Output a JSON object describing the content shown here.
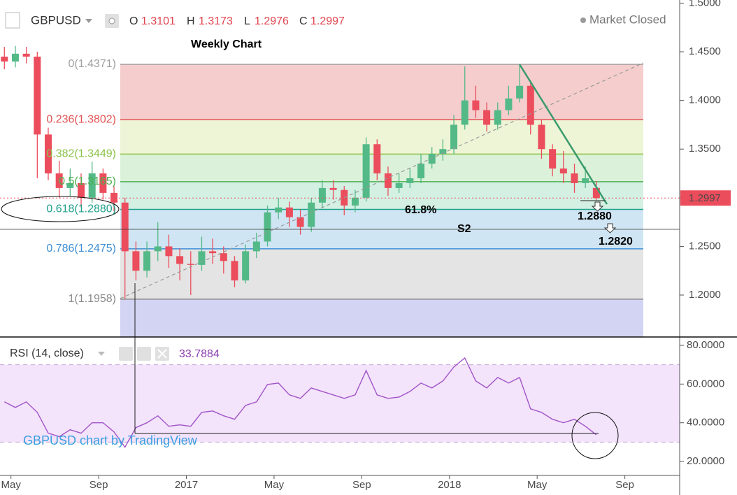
{
  "header": {
    "symbol": "GBPUSD",
    "ohlc_labels": [
      "O",
      "H",
      "L",
      "C"
    ],
    "status": "Market Closed"
  },
  "annotations": {
    "title": "Weekly Chart",
    "fib_pct": "61.8%",
    "s2": "S2",
    "target1": "1.2880",
    "target2": "1.2820",
    "watermark": "GBPUSD chart by TradingView"
  },
  "chart_data": [
    {
      "type": "candlestick",
      "up_color": "#53b987",
      "down_color": "#eb4d5c",
      "last_price_color": "#eb4d5c",
      "x": [
        -0.3,
        0.2,
        0.7,
        1.2,
        1.7,
        2.2,
        2.7,
        3.2,
        3.7,
        4.2,
        4.7,
        5.2,
        5.7,
        6.2,
        6.7,
        7.2,
        7.7,
        8.2,
        8.7,
        9.2,
        9.7,
        10.2,
        10.7,
        11.2,
        11.7,
        12.2,
        12.7,
        13.2,
        13.7,
        14.2,
        14.7,
        15.2,
        15.7,
        16.2,
        16.7,
        17.2,
        17.7,
        18.2,
        18.7,
        19.2,
        19.7,
        20.2,
        20.7,
        21.2,
        21.7,
        22.2,
        22.7,
        23.2,
        23.7,
        24.2,
        24.7,
        25.2,
        25.7,
        26.2,
        26.7
      ],
      "open": [
        1.445,
        1.44,
        1.448,
        1.445,
        1.365,
        1.325,
        1.31,
        1.315,
        1.3,
        1.325,
        1.305,
        1.295,
        1.245,
        1.225,
        1.245,
        1.25,
        1.24,
        1.232,
        1.231,
        1.245,
        1.243,
        1.235,
        1.215,
        1.245,
        1.255,
        1.285,
        1.29,
        1.28,
        1.27,
        1.295,
        1.31,
        1.308,
        1.292,
        1.3,
        1.355,
        1.325,
        1.31,
        1.315,
        1.32,
        1.335,
        1.345,
        1.35,
        1.375,
        1.4,
        1.39,
        1.375,
        1.39,
        1.402,
        1.415,
        1.375,
        1.35,
        1.33,
        1.325,
        1.315,
        1.3101
      ],
      "high": [
        1.455,
        1.456,
        1.455,
        1.45,
        1.372,
        1.338,
        1.33,
        1.325,
        1.337,
        1.33,
        1.312,
        1.3,
        1.255,
        1.255,
        1.275,
        1.262,
        1.248,
        1.245,
        1.26,
        1.258,
        1.25,
        1.24,
        1.252,
        1.264,
        1.292,
        1.3,
        1.296,
        1.288,
        1.3,
        1.318,
        1.318,
        1.312,
        1.308,
        1.362,
        1.36,
        1.332,
        1.325,
        1.33,
        1.345,
        1.352,
        1.36,
        1.385,
        1.435,
        1.415,
        1.398,
        1.398,
        1.415,
        1.437,
        1.42,
        1.38,
        1.355,
        1.348,
        1.335,
        1.332,
        1.3173
      ],
      "low": [
        1.432,
        1.434,
        1.438,
        1.32,
        1.318,
        1.3,
        1.302,
        1.29,
        1.295,
        1.298,
        1.286,
        1.196,
        1.215,
        1.218,
        1.235,
        1.228,
        1.215,
        1.2,
        1.225,
        1.232,
        1.222,
        1.208,
        1.212,
        1.238,
        1.25,
        1.278,
        1.27,
        1.262,
        1.265,
        1.29,
        1.298,
        1.282,
        1.285,
        1.296,
        1.318,
        1.302,
        1.305,
        1.31,
        1.315,
        1.33,
        1.338,
        1.345,
        1.37,
        1.382,
        1.368,
        1.37,
        1.385,
        1.398,
        1.365,
        1.34,
        1.322,
        1.315,
        1.305,
        1.31,
        1.2976
      ],
      "close": [
        1.44,
        1.448,
        1.445,
        1.365,
        1.325,
        1.31,
        1.315,
        1.3,
        1.325,
        1.305,
        1.295,
        1.245,
        1.225,
        1.245,
        1.25,
        1.24,
        1.232,
        1.231,
        1.245,
        1.243,
        1.235,
        1.215,
        1.245,
        1.255,
        1.285,
        1.29,
        1.28,
        1.27,
        1.295,
        1.31,
        1.308,
        1.292,
        1.3,
        1.355,
        1.325,
        1.31,
        1.315,
        1.32,
        1.335,
        1.345,
        1.35,
        1.375,
        1.4,
        1.39,
        1.375,
        1.39,
        1.402,
        1.415,
        1.375,
        1.35,
        1.33,
        1.325,
        1.315,
        1.32,
        1.2997
      ],
      "xlim": [
        -0.5,
        30.5
      ],
      "xticks": [
        {
          "value": 0,
          "label": "May"
        },
        {
          "value": 4,
          "label": "Sep"
        },
        {
          "value": 8,
          "label": "2017"
        },
        {
          "value": 12,
          "label": "May"
        },
        {
          "value": 16,
          "label": "Sep"
        },
        {
          "value": 20,
          "label": "2018"
        },
        {
          "value": 24,
          "label": "May"
        },
        {
          "value": 28,
          "label": "Sep"
        }
      ],
      "ylim": [
        1.1569,
        1.5032
      ],
      "yticks": [
        {
          "value": 1.5,
          "label": "1.5000"
        },
        {
          "value": 1.45,
          "label": "1.4500"
        },
        {
          "value": 1.4,
          "label": "1.4000"
        },
        {
          "value": 1.35,
          "label": "1.3500"
        },
        {
          "value": 1.3,
          "label": "1.3000"
        },
        {
          "value": 1.25,
          "label": "1.2500"
        },
        {
          "value": 1.2,
          "label": "1.2000"
        }
      ],
      "fib_levels": [
        {
          "label": "0(1.4371)",
          "value": 1.4371,
          "color": "#9e9e9e",
          "zone_color": "#f5cdcd"
        },
        {
          "label": "0.236(1.3802)",
          "value": 1.3802,
          "color": "#e05252",
          "zone_color": "#eef4d6"
        },
        {
          "label": "0.382(1.3449)",
          "value": 1.3449,
          "color": "#8bc34a",
          "zone_color": "#dcf1d9"
        },
        {
          "label": "0.5(1.3165)",
          "value": 1.3165,
          "color": "#4caf50",
          "zone_color": "#d3f0e3"
        },
        {
          "label": "0.618(1.2880)",
          "value": 1.288,
          "color": "#1fa08c",
          "zone_color": "#cfe5f3"
        },
        {
          "label": "0.786(1.2475)",
          "value": 1.2475,
          "color": "#3f8fd6",
          "zone_color": "#e4e4e4"
        },
        {
          "label": "1(1.1958)",
          "value": 1.1958,
          "color": "#8a8a8a",
          "zone_color": "#d3d3f3"
        }
      ]
    },
    {
      "type": "line",
      "title": "RSI (14, close)",
      "color": "#a155c7",
      "band": [
        30,
        70
      ],
      "band_color": "#f3e3fb",
      "values": [
        50.8,
        47.9,
        50.8,
        45.4,
        34.6,
        32.8,
        36.4,
        34.6,
        40.0,
        40.0,
        35.3,
        27.4,
        37.5,
        40.0,
        43.6,
        38.2,
        38.9,
        38.2,
        45.4,
        46.1,
        43.6,
        41.8,
        49.0,
        50.8,
        59.8,
        60.5,
        54.4,
        52.6,
        58.0,
        56.2,
        54.4,
        52.6,
        54.4,
        67.0,
        54.4,
        52.6,
        53.3,
        56.2,
        60.5,
        58.0,
        61.6,
        68.8,
        73.5,
        61.6,
        58.0,
        63.4,
        60.5,
        63.4,
        47.2,
        45.4,
        41.8,
        40.0,
        41.8,
        38.2,
        33.7884
      ],
      "ylim": [
        12.8,
        83.6
      ],
      "yticks": [
        {
          "value": 80,
          "label": "80.0000"
        },
        {
          "value": 60,
          "label": "60.0000"
        },
        {
          "value": 40,
          "label": "40.0000"
        },
        {
          "value": 20,
          "label": "20.0000"
        }
      ]
    }
  ]
}
